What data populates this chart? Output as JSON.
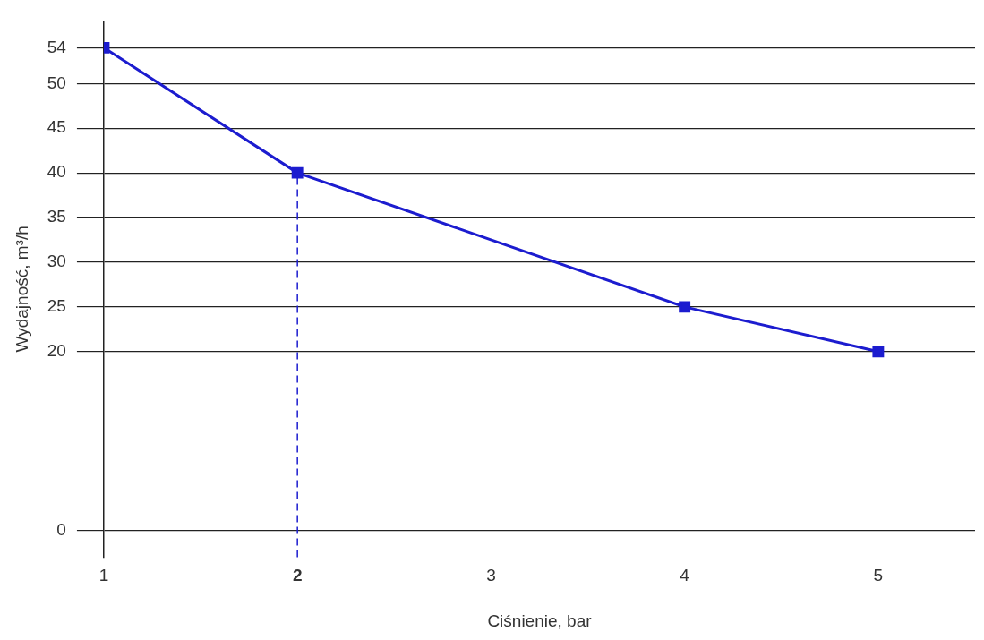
{
  "chart_data": {
    "type": "line",
    "xlabel": "Ciśnienie, bar",
    "ylabel": "Wydajność, m³/h",
    "x": [
      1,
      2,
      4,
      5
    ],
    "series": [
      {
        "color": "#1c1ccf",
        "values": [
          54,
          40,
          25,
          20
        ]
      }
    ],
    "xlim": [
      1,
      5.5
    ],
    "xticks": [
      1,
      2,
      3,
      4,
      5
    ],
    "ylim": [
      -3,
      57
    ],
    "yticks": [
      0,
      20,
      25,
      30,
      35,
      40,
      45,
      50,
      54
    ],
    "grid": "y",
    "legend": false,
    "marker": "square",
    "line_style": "solid",
    "ref_lines": [
      {
        "axis": "x",
        "value": 2,
        "color": "#1c1ccf",
        "line_style": "dashed"
      }
    ]
  }
}
